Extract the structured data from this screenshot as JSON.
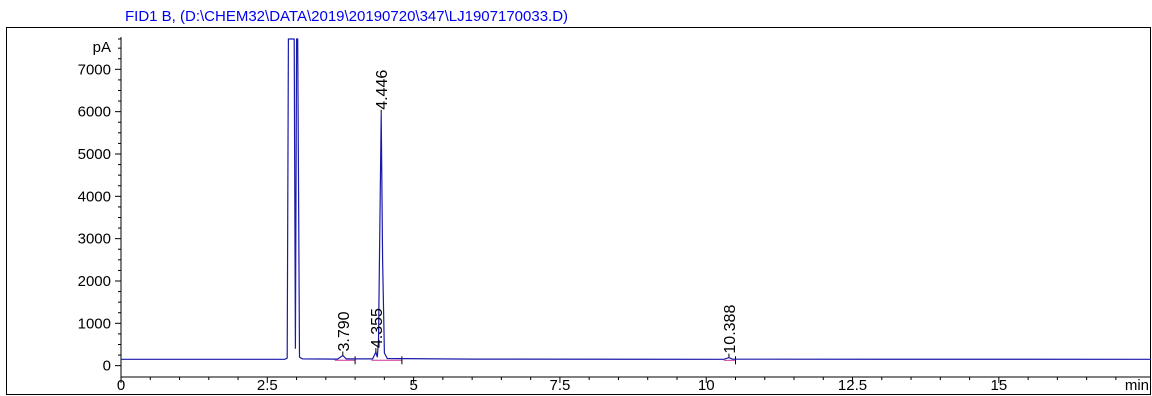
{
  "chart_data": {
    "type": "line",
    "title": "FID1 B,  (D:\\CHEM32\\DATA\\2019\\20190720\\347\\LJ1907170033.D)",
    "ylabel": "pA",
    "xlabel": "min",
    "xlim": [
      0,
      17.6
    ],
    "ylim": [
      -150,
      8000
    ],
    "x_ticks": [
      0,
      2.5,
      5,
      7.5,
      10,
      12.5,
      15
    ],
    "x_tick_labels": [
      "0",
      "2.5",
      "5",
      "7.5",
      "10",
      "12.5",
      "15"
    ],
    "y_ticks": [
      0,
      1000,
      2000,
      3000,
      4000,
      5000,
      6000,
      7000
    ],
    "y_tick_labels": [
      "0",
      "1000",
      "2000",
      "3000",
      "4000",
      "5000",
      "6000",
      "7000"
    ],
    "grid": false,
    "trace_color": "#1a1aaa",
    "title_color": "#0000ee",
    "baseline_color": "#cc3399",
    "series": [
      {
        "points": [
          [
            0,
            150
          ],
          [
            2.8,
            150
          ],
          [
            2.84,
            180
          ],
          [
            2.86,
            9000
          ],
          [
            2.96,
            9000
          ],
          [
            2.98,
            400
          ],
          [
            3.0,
            9000
          ],
          [
            3.02,
            9000
          ],
          [
            3.05,
            200
          ],
          [
            3.1,
            160
          ],
          [
            3.7,
            155
          ],
          [
            3.79,
            240
          ],
          [
            3.85,
            160
          ],
          [
            4.3,
            160
          ],
          [
            4.355,
            320
          ],
          [
            4.38,
            200
          ],
          [
            4.4,
            600
          ],
          [
            4.446,
            5950
          ],
          [
            4.47,
            2500
          ],
          [
            4.5,
            300
          ],
          [
            4.55,
            170
          ],
          [
            6.0,
            155
          ],
          [
            10.3,
            150
          ],
          [
            10.388,
            190
          ],
          [
            10.45,
            152
          ],
          [
            17.6,
            150
          ]
        ]
      }
    ],
    "peaks": [
      {
        "rt": 3.79,
        "label": "3.790",
        "height": 240
      },
      {
        "rt": 4.355,
        "label": "4.355",
        "height": 320
      },
      {
        "rt": 4.446,
        "label": "4.446",
        "height": 5950
      },
      {
        "rt": 10.388,
        "label": "10.388",
        "height": 190
      }
    ]
  }
}
